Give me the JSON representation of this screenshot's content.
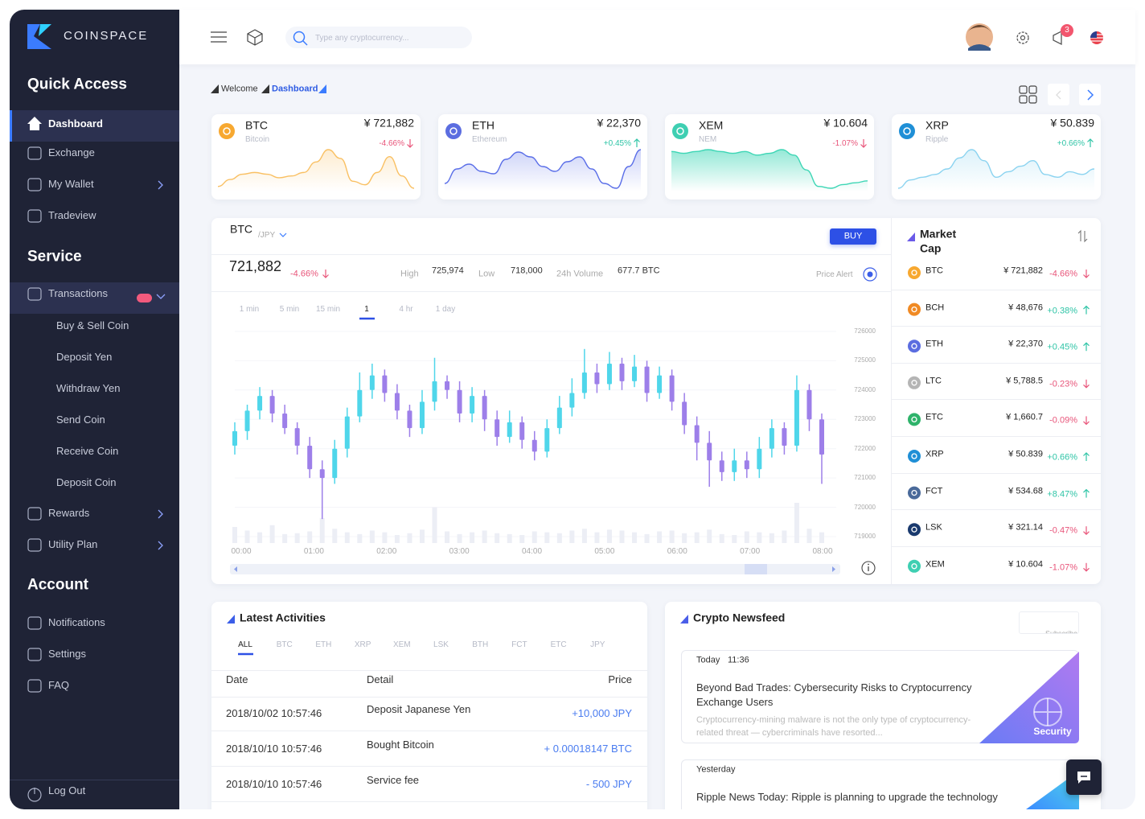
{
  "sidebar": {
    "brand": "COINSPACE",
    "sections": [
      {
        "title": "Quick Access",
        "items": [
          "Dashboard",
          "Exchange",
          "My Wallet",
          "Tradeview"
        ]
      },
      {
        "title": "Service",
        "items": [
          "Transactions",
          "Buy & Sell Coin",
          "Deposit Yen",
          "Withdraw Yen",
          "Send Coin",
          "Receive Coin",
          "Deposit Coin",
          "Rewards",
          "Utility Plan"
        ]
      },
      {
        "title": "Account",
        "items": [
          "Notifications",
          "Settings",
          "FAQ"
        ]
      }
    ],
    "logout": "Log Out"
  },
  "topbar": {
    "search_placeholder": "Type any cryptocurrency...",
    "notification_count": 3
  },
  "breadcrumb": [
    "Welcome",
    "Dashboard"
  ],
  "tickers": [
    {
      "symbol": "BTC",
      "name": "Bitcoin",
      "price": "¥ 721,882",
      "change": "-4.66%",
      "color": "#f9c063",
      "icon_color": "#f7a830",
      "spark": [
        6,
        10,
        13,
        14,
        13,
        11,
        12,
        14,
        20,
        27,
        22,
        9,
        7,
        14,
        23,
        12,
        5
      ]
    },
    {
      "symbol": "ETH",
      "name": "Ethereum",
      "price": "¥ 22,370",
      "change": "+0.45%",
      "color": "#5a6ee8",
      "icon_color": "#5b6de0",
      "spark": [
        8,
        14,
        16,
        13,
        12,
        18,
        21,
        19,
        15,
        13,
        17,
        19,
        14,
        8,
        6,
        15,
        22
      ]
    },
    {
      "symbol": "XEM",
      "name": "NEM",
      "price": "¥ 10.604",
      "change": "-1.07%",
      "color": "#3dd6b5",
      "icon_color": "#3ecfb2",
      "spark": [
        24,
        23,
        24,
        25,
        24,
        23,
        24,
        22,
        23,
        25,
        22,
        14,
        5,
        4,
        6,
        7,
        8
      ]
    },
    {
      "symbol": "XRP",
      "name": "Ripple",
      "price": "¥ 50.839",
      "change": "+0.66%",
      "color": "#8bd3f0",
      "icon_color": "#1f8fd6",
      "spark": [
        8,
        11,
        12,
        13,
        15,
        19,
        22,
        18,
        12,
        14,
        16,
        18,
        13,
        12,
        14,
        13,
        15
      ]
    }
  ],
  "main_chart": {
    "type": "candlestick",
    "symbol": "BTC",
    "quote": "/JPY",
    "buy": "BUY",
    "last": "721,882",
    "change": "-4.66%",
    "stats": [
      {
        "label": "High",
        "value": "725,974"
      },
      {
        "label": "Low",
        "value": "718,000"
      },
      {
        "label": "24h Volume",
        "value": "677.7 BTC"
      }
    ],
    "price_alert": "Price Alert",
    "intervals": [
      "1 min",
      "5 min",
      "15 min",
      "1",
      "4 hr",
      "1 day"
    ],
    "up_color": "#4fd6ea",
    "down_color": "#9d7fe9",
    "ylim": [
      718800,
      726300
    ],
    "yticks": [
      719000,
      720000,
      721000,
      722000,
      723000,
      724000,
      725000,
      726000
    ],
    "xticks": [
      "00:00",
      "01:00",
      "02:00",
      "03:00",
      "04:00",
      "05:00",
      "06:00",
      "07:00",
      "08:00"
    ],
    "open": [
      722100,
      722600,
      723300,
      723800,
      723200,
      722700,
      722100,
      721300,
      721000,
      722000,
      723100,
      724000,
      724500,
      723900,
      723300,
      722700,
      723600,
      724300,
      724000,
      723200,
      723800,
      723000,
      722400,
      722900,
      722300,
      721900,
      722700,
      723400,
      723900,
      724600,
      724200,
      724900,
      724300,
      724800,
      723900,
      724500,
      723600,
      722800,
      722200,
      721600,
      721200,
      721600,
      721300,
      722000,
      722700,
      722100,
      724000,
      723000
    ],
    "high": [
      722900,
      723500,
      724100,
      724000,
      723500,
      722900,
      722400,
      721600,
      722300,
      723400,
      724600,
      724900,
      724700,
      724200,
      723500,
      724000,
      725100,
      724500,
      724300,
      724100,
      724000,
      723300,
      723300,
      723100,
      722600,
      723000,
      723800,
      724400,
      725400,
      724900,
      725300,
      725100,
      725200,
      725000,
      724800,
      724700,
      723900,
      723100,
      722600,
      721900,
      722000,
      721900,
      722400,
      723000,
      722900,
      724500,
      724200,
      723200
    ],
    "low": [
      721800,
      722300,
      723000,
      722900,
      722500,
      721800,
      721000,
      719600,
      720800,
      721700,
      722900,
      723700,
      723600,
      723000,
      722400,
      722500,
      723300,
      723700,
      722900,
      722900,
      722600,
      722100,
      722200,
      722000,
      721600,
      721700,
      722500,
      723100,
      723700,
      723900,
      724000,
      724000,
      724100,
      723600,
      723700,
      723300,
      722500,
      721600,
      720700,
      720900,
      720900,
      721000,
      721000,
      721700,
      721800,
      721900,
      722600,
      720800
    ],
    "close": [
      722600,
      723300,
      723800,
      723200,
      722700,
      722100,
      721300,
      721000,
      722000,
      723100,
      724000,
      724500,
      723900,
      723300,
      722700,
      723600,
      724300,
      724000,
      723200,
      723800,
      723000,
      722400,
      722900,
      722300,
      721900,
      722700,
      723400,
      723900,
      724600,
      724200,
      724900,
      724300,
      724800,
      723900,
      724500,
      723600,
      722800,
      722200,
      721600,
      721200,
      721600,
      721300,
      722000,
      722700,
      722100,
      724000,
      723000,
      721800
    ],
    "volume": [
      18,
      14,
      12,
      20,
      10,
      11,
      13,
      28,
      16,
      12,
      10,
      14,
      12,
      9,
      11,
      15,
      40,
      13,
      10,
      12,
      14,
      11,
      10,
      9,
      13,
      12,
      11,
      14,
      16,
      12,
      15,
      14,
      12,
      10,
      13,
      14,
      11,
      12,
      15,
      10,
      9,
      13,
      12,
      11,
      14,
      45,
      16,
      12
    ]
  },
  "market_cap": {
    "title": [
      "Market",
      "Cap"
    ],
    "rows": [
      {
        "symbol": "BTC",
        "price": "¥ 721,882",
        "change": "-4.66%",
        "icon_color": "#f7a830"
      },
      {
        "symbol": "BCH",
        "price": "¥ 48,676",
        "change": "+0.38%",
        "icon_color": "#f08a24"
      },
      {
        "symbol": "ETH",
        "price": "¥ 22,370",
        "change": "+0.45%",
        "icon_color": "#5b6de0"
      },
      {
        "symbol": "LTC",
        "price": "¥ 5,788.5",
        "change": "-0.23%",
        "icon_color": "#b5b5b5"
      },
      {
        "symbol": "ETC",
        "price": "¥ 1,660.7",
        "change": "-0.09%",
        "icon_color": "#2fb36b"
      },
      {
        "symbol": "XRP",
        "price": "¥ 50.839",
        "change": "+0.66%",
        "icon_color": "#1f8fd6"
      },
      {
        "symbol": "FCT",
        "price": "¥ 534.68",
        "change": "+8.47%",
        "icon_color": "#4a6a9a"
      },
      {
        "symbol": "LSK",
        "price": "¥ 321.14",
        "change": "-0.47%",
        "icon_color": "#1a3a6e"
      },
      {
        "symbol": "XEM",
        "price": "¥ 10.604",
        "change": "-1.07%",
        "icon_color": "#3ecfb2"
      }
    ]
  },
  "activities": {
    "title": "Latest Activities",
    "tabs": [
      "ALL",
      "BTC",
      "ETH",
      "XRP",
      "XEM",
      "LSK",
      "BTH",
      "FCT",
      "ETC",
      "JPY"
    ],
    "columns": [
      "Date",
      "Detail",
      "Price"
    ],
    "rows": [
      [
        "2018/10/02 10:57:46",
        "Deposit Japanese Yen",
        "+10,000 JPY"
      ],
      [
        "2018/10/10 10:57:46",
        "Bought Bitcoin",
        "+ 0.00018147 BTC"
      ],
      [
        "2018/10/10 10:57:46",
        "Service fee",
        "- 500 JPY"
      ]
    ]
  },
  "newsfeed": {
    "title": "Crypto Newsfeed",
    "subscribe": "Subscribe",
    "items": [
      {
        "day": "Today",
        "time": "11:36",
        "title": "Beyond Bad Trades: Cybersecurity Risks to Cryptocurrency Exchange Users",
        "excerpt": "Cryptocurrency-mining malware is not the only type of cryptocurrency-related threat — cybercriminals have resorted...",
        "tag": "Security"
      },
      {
        "day": "Yesterday",
        "title": "Ripple News Today: Ripple is planning to upgrade the technology"
      }
    ]
  }
}
